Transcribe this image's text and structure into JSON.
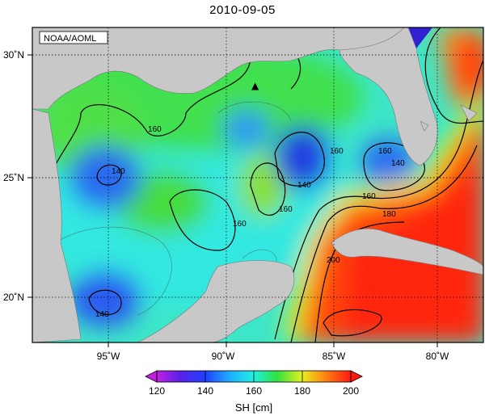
{
  "title": "2010-09-05",
  "credit": "NOAA/AOML",
  "colorbar": {
    "label": "SH [cm]",
    "ticks": [
      "120",
      "140",
      "160",
      "180",
      "200"
    ]
  },
  "lon_labels": [
    "95˚W",
    "90˚W",
    "85˚W",
    "80˚W"
  ],
  "lat_labels": [
    "30˚N",
    "25˚N",
    "20˚N"
  ],
  "contour_labels": [
    "140",
    "140",
    "140",
    "160",
    "160",
    "160",
    "160",
    "160",
    "180",
    "200",
    "160",
    "140"
  ],
  "marker_symbol": "▲",
  "colors": {
    "land": "#c8c8c8",
    "low": "#3a2bd8",
    "mid": "#2fe6e6",
    "high_green": "#3ce03c",
    "yellow": "#f0f020",
    "warm": "#ff2a10"
  }
}
